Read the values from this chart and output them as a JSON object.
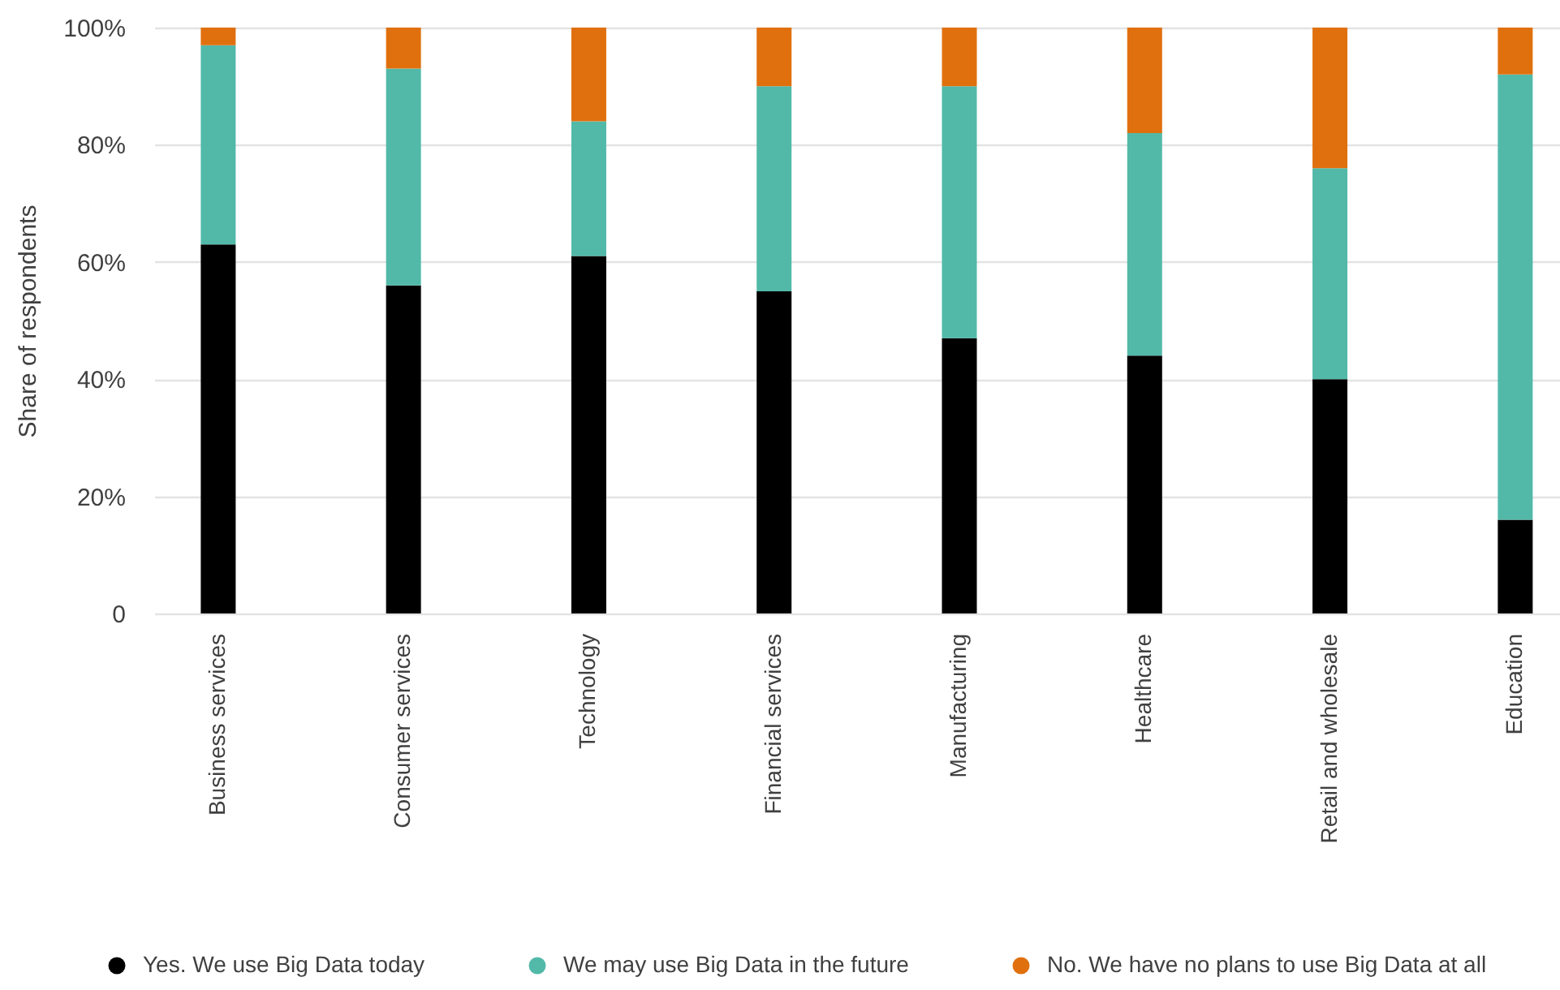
{
  "chart_data": {
    "type": "bar",
    "stacked": true,
    "categories": [
      "Business services",
      "Consumer services",
      "Technology",
      "Financial services",
      "Manufacturing",
      "Healthcare",
      "Retail and wholesale",
      "Education"
    ],
    "series": [
      {
        "name": "Yes. We use Big Data today",
        "color": "#000000",
        "values": [
          63,
          56,
          61,
          55,
          47,
          44,
          40,
          16
        ]
      },
      {
        "name": "We may use Big Data in the future",
        "color": "#52b9a9",
        "values": [
          34,
          37,
          23,
          35,
          43,
          38,
          36,
          76
        ]
      },
      {
        "name": "No. We have no plans to use Big Data at all",
        "color": "#e0700e",
        "values": [
          3,
          7,
          16,
          10,
          10,
          18,
          24,
          8
        ]
      }
    ],
    "ylabel": "Share of respondents",
    "ylim": [
      0,
      100
    ],
    "yticks": [
      0,
      {
        "value": 20,
        "label": "20%"
      },
      {
        "value": 40,
        "label": "40%"
      },
      {
        "value": 60,
        "label": "60%"
      },
      {
        "value": 80,
        "label": "80%"
      },
      {
        "value": 100,
        "label": "100%"
      }
    ],
    "grid": "y",
    "legend": "bottom"
  }
}
